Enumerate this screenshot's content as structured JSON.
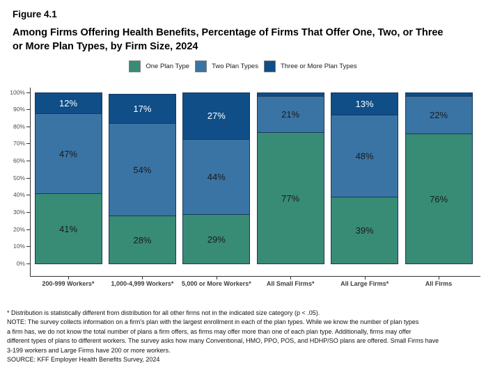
{
  "page": {
    "figure_label": "Figure 4.1",
    "title_line1": "Among Firms Offering Health Benefits, Percentage of Firms That Offer One, Two, or Three",
    "title_line2": "or More Plan Types, by Firm Size, 2024"
  },
  "chart_data": {
    "type": "bar",
    "stacked": true,
    "title": "Among Firms Offering Health Benefits, Percentage of Firms That Offer One, Two, or Three or More Plan Types, by Firm Size, 2024",
    "categories": [
      "200-999 Workers*",
      "1,000-4,999 Workers*",
      "5,000 or More Workers*",
      "All Small Firms*",
      "All Large Firms*",
      "All Firms"
    ],
    "series": [
      {
        "name": "One Plan Type",
        "color": "#388C75",
        "label_color": "#1a1a1a",
        "values": [
          41,
          28,
          29,
          77,
          39,
          76
        ]
      },
      {
        "name": "Two Plan Types",
        "color": "#3A74A4",
        "label_color": "#1a1a1a",
        "values": [
          47,
          54,
          44,
          21,
          48,
          22
        ]
      },
      {
        "name": "Three or More Plan Types",
        "color": "#0F4E87",
        "label_color": "#ffffff",
        "values": [
          12,
          17,
          27,
          2,
          13,
          2
        ]
      }
    ],
    "value_label_suffix": "%",
    "label_min_value": 10,
    "ylim": [
      0,
      100
    ],
    "yticks": [
      "0%",
      "10%",
      "20%",
      "30%",
      "40%",
      "50%",
      "60%",
      "70%",
      "80%",
      "90%",
      "100%"
    ],
    "xlabel": "",
    "ylabel": "",
    "grid": false,
    "legend_position": "top"
  },
  "footnotes": {
    "lines": [
      "* Distribution is statistically different from distribution for all other firms not in the indicated size category (p < .05).",
      "NOTE: The survey collects information on a firm's plan with the largest enrollment in each of the plan types. While we know the number of plan types",
      "a firm has, we do not know the total number of plans a firm offers, as firms may offer more than one of each plan type. Additionally, firms may offer",
      "different types of plans to different workers. The survey asks how many Conventional, HMO, PPO, POS, and HDHP/SO plans are offered. Small Firms have",
      "3-199 workers and Large Firms have 200 or more workers.",
      "SOURCE: KFF Employer Health Benefits Survey, 2024"
    ]
  }
}
